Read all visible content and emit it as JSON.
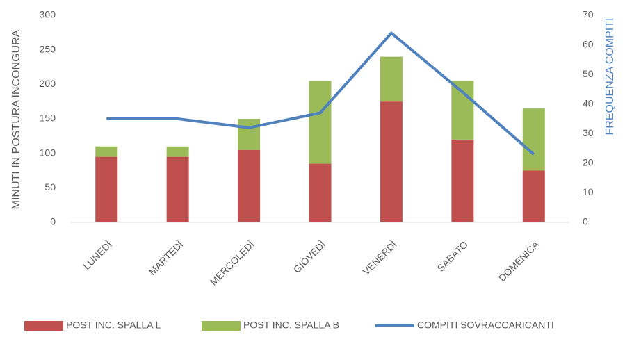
{
  "chart_data": {
    "type": "bar",
    "stacked": true,
    "ylabel": "MINUTI IN POSTURA INCONGURA",
    "y2label": "FREQUENZA  COMPITI",
    "categories": [
      "LUNEDÌ",
      "MARTEDÌ",
      "MERCOLEDÌ",
      "GIOVEDÌ",
      "VENERDÌ",
      "SABATO",
      "DOMENICA"
    ],
    "series": [
      {
        "name": "POST INC. SPALLA L",
        "type": "bar",
        "color": "#c0504d",
        "values": [
          95,
          95,
          105,
          85,
          175,
          120,
          75
        ]
      },
      {
        "name": "POST INC. SPALLA B",
        "type": "bar",
        "color": "#9bbb59",
        "values": [
          15,
          15,
          45,
          120,
          65,
          85,
          90
        ]
      },
      {
        "name": "COMPITI SOVRACCARICANTI",
        "type": "line",
        "axis": "y2",
        "color": "#4f81bd",
        "values": [
          35,
          35,
          32,
          37,
          64,
          44,
          23
        ]
      }
    ],
    "ylim": [
      0,
      300
    ],
    "yticks": [
      0,
      50,
      100,
      150,
      200,
      250,
      300
    ],
    "y2lim": [
      0,
      70
    ],
    "y2ticks": [
      0,
      10,
      20,
      30,
      40,
      50,
      60,
      70
    ],
    "legend": "bottom"
  }
}
